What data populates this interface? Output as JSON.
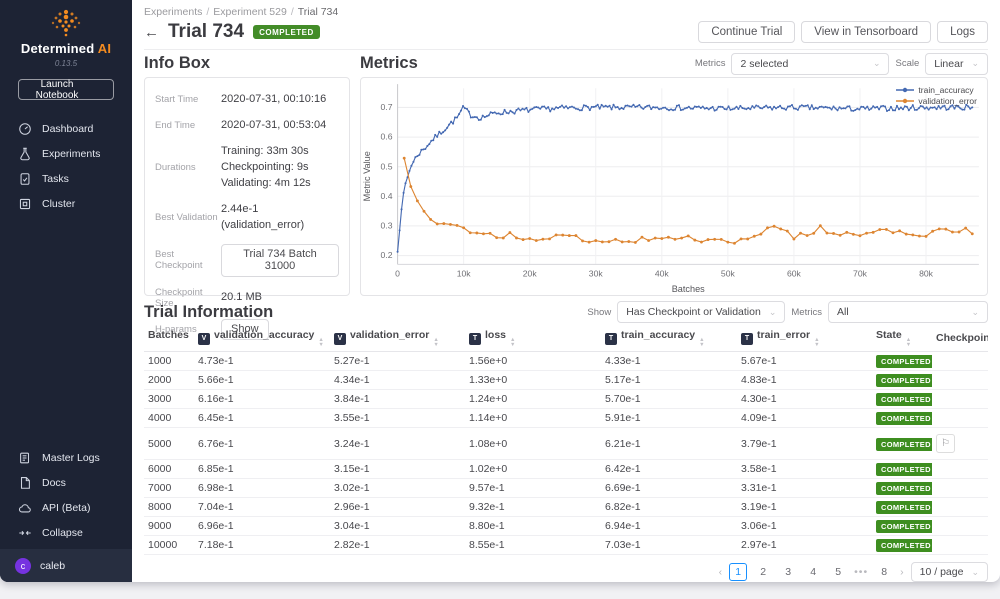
{
  "colors": {
    "accent_blue": "#1890ff",
    "brand_orange": "#f38b20",
    "status_completed_green": "#438c28",
    "sidebar_bg": "#1d2334",
    "chart_blue": "#4469b2",
    "chart_orange": "#dd8531"
  },
  "ui": {
    "chevron_down": "⌄",
    "sort_up": "▲",
    "sort_down": "▼",
    "flag_glyph": "⚐",
    "breadcrumb_separator": "/"
  },
  "sidebar": {
    "brand": {
      "name_main": "Determined",
      "name_accent": "AI",
      "version": "0.13.5"
    },
    "launch_button": {
      "label": "Launch Notebook"
    },
    "nav_top": [
      {
        "label": "Dashboard",
        "icon": "dashboard-icon"
      },
      {
        "label": "Experiments",
        "icon": "experiments-icon"
      },
      {
        "label": "Tasks",
        "icon": "tasks-icon"
      },
      {
        "label": "Cluster",
        "icon": "cluster-icon"
      }
    ],
    "nav_bottom": [
      {
        "label": "Master Logs",
        "icon": "master-logs-icon"
      },
      {
        "label": "Docs",
        "icon": "docs-icon"
      },
      {
        "label": "API (Beta)",
        "icon": "cloud-icon"
      },
      {
        "label": "Collapse",
        "icon": "collapse-icon"
      }
    ],
    "user": {
      "name": "caleb",
      "avatar_initial": "c"
    }
  },
  "header": {
    "breadcrumb": [
      "Experiments",
      "Experiment 529",
      "Trial 734"
    ],
    "back_arrow": "←",
    "title": "Trial 734",
    "status_badge": "COMPLETED",
    "actions": [
      "Continue Trial",
      "View in Tensorboard",
      "Logs"
    ]
  },
  "info_box": {
    "title": "Info Box",
    "rows": [
      {
        "label": "Start Time",
        "value": "2020-07-31, 00:10:16",
        "type": "text"
      },
      {
        "label": "End Time",
        "value": "2020-07-31, 00:53:04",
        "type": "text"
      },
      {
        "label": "Durations",
        "value": "Training: 33m 30s\nCheckpointing: 9s\nValidating: 4m 12s",
        "type": "text"
      },
      {
        "label": "Best Validation",
        "value": "2.44e-1 (validation_error)",
        "type": "text"
      },
      {
        "label": "Best Checkpoint",
        "value": "Trial 734 Batch 31000",
        "type": "button"
      },
      {
        "label": "Checkpoint Size",
        "value": "20.1 MB",
        "type": "text"
      },
      {
        "label": "H-params",
        "value": "Show",
        "type": "button"
      }
    ]
  },
  "metrics_section": {
    "title": "Metrics",
    "metrics_label": "Metrics",
    "metrics_value": "2 selected",
    "scale_label": "Scale",
    "scale_value": "Linear"
  },
  "chart_data": {
    "type": "line",
    "xlabel": "Batches",
    "ylabel": "Metric Value",
    "xlim": [
      0,
      88000
    ],
    "ylim": [
      0.17,
      0.765
    ],
    "xticks": [
      0,
      10000,
      20000,
      30000,
      40000,
      50000,
      60000,
      70000,
      80000
    ],
    "xtick_labels": [
      "0",
      "10k",
      "20k",
      "30k",
      "40k",
      "50k",
      "60k",
      "70k",
      "80k"
    ],
    "yticks": [
      0.2,
      0.3,
      0.4,
      0.5,
      0.6,
      0.7
    ],
    "grid": true,
    "legend_position": "top-right",
    "series": [
      {
        "name": "train_accuracy",
        "color": "#4469b2",
        "noise": 0.009,
        "sample_step": 300,
        "points_x": [
          0,
          500,
          1000,
          2000,
          3000,
          4000,
          5000,
          7000,
          9000,
          10000,
          11000,
          12500,
          15000,
          20000,
          25000,
          30000,
          40000,
          50000,
          60000,
          70000,
          80000,
          87000
        ],
        "points_y": [
          0.215,
          0.335,
          0.43,
          0.5,
          0.54,
          0.56,
          0.585,
          0.625,
          0.665,
          0.7,
          0.675,
          0.665,
          0.682,
          0.692,
          0.698,
          0.7,
          0.7,
          0.696,
          0.7,
          0.695,
          0.7,
          0.7
        ]
      },
      {
        "name": "validation_error",
        "color": "#dd8531",
        "noise": 0.013,
        "sample_step": 1000,
        "points_x": [
          1000,
          2000,
          3000,
          4000,
          5000,
          6000,
          7000,
          8000,
          9000,
          10000,
          12000,
          15000,
          20000,
          25000,
          30000,
          35000,
          40000,
          45000,
          50000,
          55000,
          57000,
          60000,
          64000,
          65000,
          70000,
          75000,
          80000,
          84000,
          87000
        ],
        "points_y": [
          0.527,
          0.434,
          0.384,
          0.355,
          0.324,
          0.315,
          0.302,
          0.296,
          0.304,
          0.282,
          0.285,
          0.268,
          0.262,
          0.258,
          0.252,
          0.256,
          0.25,
          0.26,
          0.252,
          0.262,
          0.3,
          0.262,
          0.295,
          0.27,
          0.265,
          0.286,
          0.27,
          0.285,
          0.282
        ]
      }
    ]
  },
  "trial_info": {
    "title": "Trial Information",
    "show_label": "Show",
    "show_value": "Has Checkpoint or Validation",
    "metrics_label": "Metrics",
    "metrics_value": "All",
    "columns": [
      {
        "label": "Batches",
        "tag": "",
        "sortable": true
      },
      {
        "label": "validation_accuracy",
        "tag": "V",
        "sortable": true
      },
      {
        "label": "validation_error",
        "tag": "V",
        "sortable": true
      },
      {
        "label": "loss",
        "tag": "T",
        "sortable": true
      },
      {
        "label": "train_accuracy",
        "tag": "T",
        "sortable": true
      },
      {
        "label": "train_error",
        "tag": "T",
        "sortable": true
      },
      {
        "label": "State",
        "tag": "",
        "sortable": true
      },
      {
        "label": "Checkpoint",
        "tag": "",
        "sortable": false
      }
    ],
    "rows": [
      {
        "batches": "1000",
        "validation_accuracy": "4.73e-1",
        "validation_error": "5.27e-1",
        "loss": "1.56e+0",
        "train_accuracy": "4.33e-1",
        "train_error": "5.67e-1",
        "state": "COMPLETED",
        "checkpoint": false
      },
      {
        "batches": "2000",
        "validation_accuracy": "5.66e-1",
        "validation_error": "4.34e-1",
        "loss": "1.33e+0",
        "train_accuracy": "5.17e-1",
        "train_error": "4.83e-1",
        "state": "COMPLETED",
        "checkpoint": false
      },
      {
        "batches": "3000",
        "validation_accuracy": "6.16e-1",
        "validation_error": "3.84e-1",
        "loss": "1.24e+0",
        "train_accuracy": "5.70e-1",
        "train_error": "4.30e-1",
        "state": "COMPLETED",
        "checkpoint": false
      },
      {
        "batches": "4000",
        "validation_accuracy": "6.45e-1",
        "validation_error": "3.55e-1",
        "loss": "1.14e+0",
        "train_accuracy": "5.91e-1",
        "train_error": "4.09e-1",
        "state": "COMPLETED",
        "checkpoint": false
      },
      {
        "batches": "5000",
        "validation_accuracy": "6.76e-1",
        "validation_error": "3.24e-1",
        "loss": "1.08e+0",
        "train_accuracy": "6.21e-1",
        "train_error": "3.79e-1",
        "state": "COMPLETED",
        "checkpoint": true
      },
      {
        "batches": "6000",
        "validation_accuracy": "6.85e-1",
        "validation_error": "3.15e-1",
        "loss": "1.02e+0",
        "train_accuracy": "6.42e-1",
        "train_error": "3.58e-1",
        "state": "COMPLETED",
        "checkpoint": false
      },
      {
        "batches": "7000",
        "validation_accuracy": "6.98e-1",
        "validation_error": "3.02e-1",
        "loss": "9.57e-1",
        "train_accuracy": "6.69e-1",
        "train_error": "3.31e-1",
        "state": "COMPLETED",
        "checkpoint": false
      },
      {
        "batches": "8000",
        "validation_accuracy": "7.04e-1",
        "validation_error": "2.96e-1",
        "loss": "9.32e-1",
        "train_accuracy": "6.82e-1",
        "train_error": "3.19e-1",
        "state": "COMPLETED",
        "checkpoint": false
      },
      {
        "batches": "9000",
        "validation_accuracy": "6.96e-1",
        "validation_error": "3.04e-1",
        "loss": "8.80e-1",
        "train_accuracy": "6.94e-1",
        "train_error": "3.06e-1",
        "state": "COMPLETED",
        "checkpoint": false
      },
      {
        "batches": "10000",
        "validation_accuracy": "7.18e-1",
        "validation_error": "2.82e-1",
        "loss": "8.55e-1",
        "train_accuracy": "7.03e-1",
        "train_error": "2.97e-1",
        "state": "COMPLETED",
        "checkpoint": false
      }
    ],
    "pagination": {
      "prev": "‹",
      "next": "›",
      "pages": [
        "1",
        "2",
        "3",
        "4",
        "5",
        "•••",
        "8"
      ],
      "active": "1",
      "page_size": "10 / page"
    }
  }
}
